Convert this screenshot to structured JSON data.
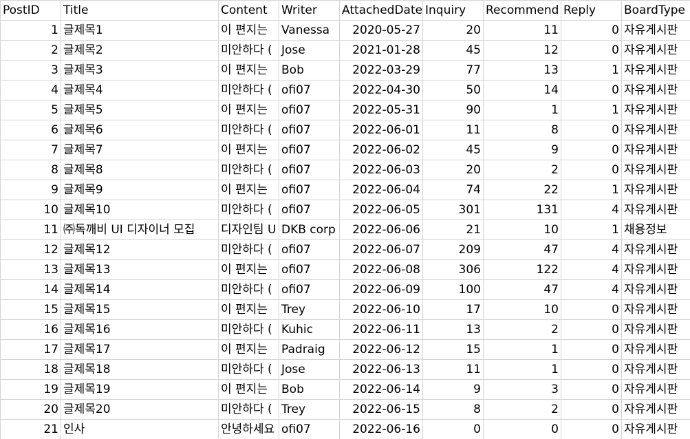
{
  "columns": [
    "PostID",
    "Title",
    "Content",
    "Writer",
    "AttachedDate",
    "Inquiry",
    "Recommend",
    "Reply",
    "BoardType"
  ],
  "rows": [
    [
      "1",
      "글제목1",
      "이 편지는",
      "Vanessa",
      "2020-05-27",
      "20",
      "11",
      "0",
      "자유게시판"
    ],
    [
      "2",
      "글제목2",
      "미안하다 (",
      "Jose",
      "2021-01-28",
      "45",
      "12",
      "0",
      "자유게시판"
    ],
    [
      "3",
      "글제목3",
      "이 편지는",
      "Bob",
      "2022-03-29",
      "77",
      "13",
      "1",
      "자유게시판"
    ],
    [
      "4",
      "글제목4",
      "미안하다 (",
      "ofi07",
      "2022-04-30",
      "50",
      "14",
      "0",
      "자유게시판"
    ],
    [
      "5",
      "글제목5",
      "이 편지는",
      "ofi07",
      "2022-05-31",
      "90",
      "1",
      "1",
      "자유게시판"
    ],
    [
      "6",
      "글제목6",
      "미안하다 (",
      "ofi07",
      "2022-06-01",
      "11",
      "8",
      "0",
      "자유게시판"
    ],
    [
      "7",
      "글제목7",
      "이 편지는",
      "ofi07",
      "2022-06-02",
      "45",
      "9",
      "0",
      "자유게시판"
    ],
    [
      "8",
      "글제목8",
      "미안하다 (",
      "ofi07",
      "2022-06-03",
      "20",
      "2",
      "0",
      "자유게시판"
    ],
    [
      "9",
      "글제목9",
      "이 편지는",
      "ofi07",
      "2022-06-04",
      "74",
      "22",
      "1",
      "자유게시판"
    ],
    [
      "10",
      "글제목10",
      "미안하다 (",
      "ofi07",
      "2022-06-05",
      "301",
      "131",
      "4",
      "자유게시판"
    ],
    [
      "11",
      "㈜독깨비 UI 디자이너 모집",
      "디자인팀 U",
      "DKB corp",
      "2022-06-06",
      "21",
      "10",
      "1",
      "채용정보"
    ],
    [
      "12",
      "글제목12",
      "미안하다 (",
      "ofi07",
      "2022-06-07",
      "209",
      "47",
      "4",
      "자유게시판"
    ],
    [
      "13",
      "글제목13",
      "이 편지는",
      "ofi07",
      "2022-06-08",
      "306",
      "122",
      "4",
      "자유게시판"
    ],
    [
      "14",
      "글제목14",
      "미안하다 (",
      "ofi07",
      "2022-06-09",
      "100",
      "47",
      "4",
      "자유게시판"
    ],
    [
      "15",
      "글제목15",
      "이 편지는",
      "Trey",
      "2022-06-10",
      "17",
      "10",
      "0",
      "자유게시판"
    ],
    [
      "16",
      "글제목16",
      "미안하다 (",
      "Kuhic",
      "2022-06-11",
      "13",
      "2",
      "0",
      "자유게시판"
    ],
    [
      "17",
      "글제목17",
      "이 편지는",
      "Padraig",
      "2022-06-12",
      "15",
      "1",
      "0",
      "자유게시판"
    ],
    [
      "18",
      "글제목18",
      "미안하다 (",
      "Jose",
      "2022-06-13",
      "11",
      "1",
      "0",
      "자유게시판"
    ],
    [
      "19",
      "글제목19",
      "이 편지는",
      "Bob",
      "2022-06-14",
      "9",
      "3",
      "0",
      "자유게시판"
    ],
    [
      "20",
      "글제목20",
      "미안하다 (",
      "Trey",
      "2022-06-15",
      "8",
      "2",
      "0",
      "자유게시판"
    ],
    [
      "21",
      "인사",
      "안녕하세요",
      "ofi07",
      "2022-06-16",
      "0",
      "0",
      "0",
      "자유게시판"
    ]
  ]
}
